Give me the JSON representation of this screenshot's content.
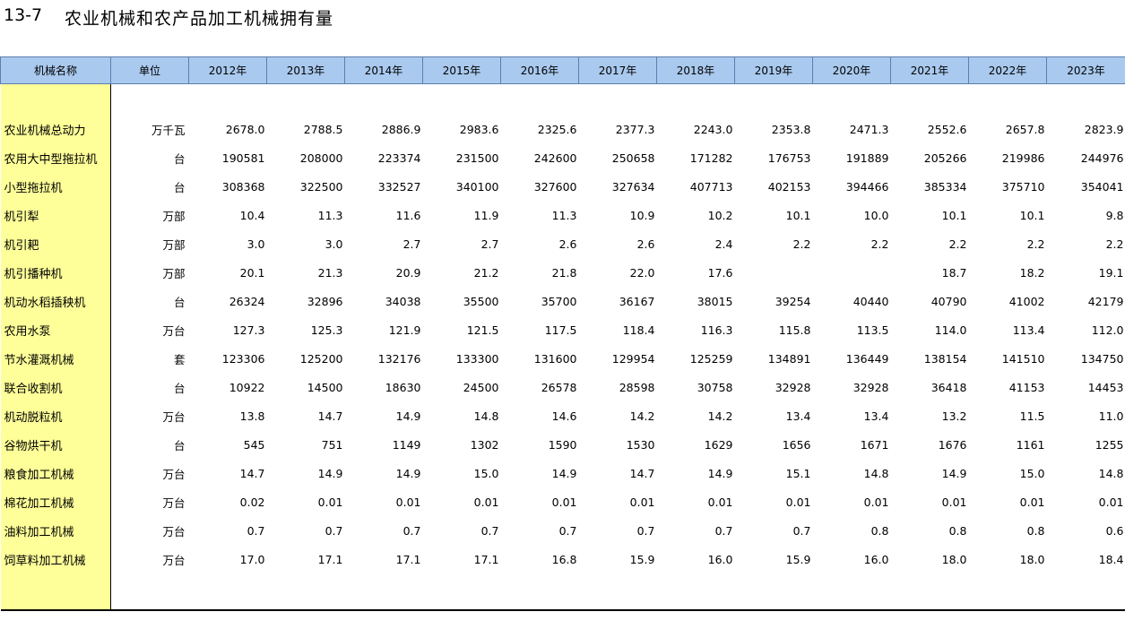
{
  "title": {
    "number": "13-7",
    "text": "农业机械和农产品加工机械拥有量"
  },
  "headers": [
    "机械名称",
    "单位",
    "2012年",
    "2013年",
    "2014年",
    "2015年",
    "2016年",
    "2017年",
    "2018年",
    "2019年",
    "2020年",
    "2021年",
    "2022年",
    "2023年"
  ],
  "rows": [
    {
      "name": "农业机械总动力",
      "unit": "万千瓦",
      "values": [
        "2678.0",
        "2788.5",
        "2886.9",
        "2983.6",
        "2325.6",
        "2377.3",
        "2243.0",
        "2353.8",
        "2471.3",
        "2552.6",
        "2657.8",
        "2823.9"
      ]
    },
    {
      "name": "农用大中型拖拉机",
      "unit": "台",
      "values": [
        "190581",
        "208000",
        "223374",
        "231500",
        "242600",
        "250658",
        "171282",
        "176753",
        "191889",
        "205266",
        "219986",
        "244976"
      ]
    },
    {
      "name": "小型拖拉机",
      "unit": "台",
      "values": [
        "308368",
        "322500",
        "332527",
        "340100",
        "327600",
        "327634",
        "407713",
        "402153",
        "394466",
        "385334",
        "375710",
        "354041"
      ]
    },
    {
      "name": "机引犁",
      "unit": "万部",
      "values": [
        "10.4",
        "11.3",
        "11.6",
        "11.9",
        "11.3",
        "10.9",
        "10.2",
        "10.1",
        "10.0",
        "10.1",
        "10.1",
        "9.8"
      ]
    },
    {
      "name": "机引耙",
      "unit": "万部",
      "values": [
        "3.0",
        "3.0",
        "2.7",
        "2.7",
        "2.6",
        "2.6",
        "2.4",
        "2.2",
        "2.2",
        "2.2",
        "2.2",
        "2.2"
      ]
    },
    {
      "name": "机引播种机",
      "unit": "万部",
      "values": [
        "20.1",
        "21.3",
        "20.9",
        "21.2",
        "21.8",
        "22.0",
        "17.6",
        "",
        "",
        "18.7",
        "18.2",
        "19.1"
      ]
    },
    {
      "name": "机动水稻插秧机",
      "unit": "台",
      "values": [
        "26324",
        "32896",
        "34038",
        "35500",
        "35700",
        "36167",
        "38015",
        "39254",
        "40440",
        "40790",
        "41002",
        "42179"
      ]
    },
    {
      "name": "农用水泵",
      "unit": "万台",
      "values": [
        "127.3",
        "125.3",
        "121.9",
        "121.5",
        "117.5",
        "118.4",
        "116.3",
        "115.8",
        "113.5",
        "114.0",
        "113.4",
        "112.0"
      ]
    },
    {
      "name": "节水灌溉机械",
      "unit": "套",
      "values": [
        "123306",
        "125200",
        "132176",
        "133300",
        "131600",
        "129954",
        "125259",
        "134891",
        "136449",
        "138154",
        "141510",
        "134750"
      ]
    },
    {
      "name": "联合收割机",
      "unit": "台",
      "values": [
        "10922",
        "14500",
        "18630",
        "24500",
        "26578",
        "28598",
        "30758",
        "32928",
        "32928",
        "36418",
        "41153",
        "14453"
      ]
    },
    {
      "name": "机动脱粒机",
      "unit": "万台",
      "values": [
        "13.8",
        "14.7",
        "14.9",
        "14.8",
        "14.6",
        "14.2",
        "14.2",
        "13.4",
        "13.4",
        "13.2",
        "11.5",
        "11.0"
      ]
    },
    {
      "name": "谷物烘干机",
      "unit": "台",
      "values": [
        "545",
        "751",
        "1149",
        "1302",
        "1590",
        "1530",
        "1629",
        "1656",
        "1671",
        "1676",
        "1161",
        "1255"
      ]
    },
    {
      "name": "粮食加工机械",
      "unit": "万台",
      "values": [
        "14.7",
        "14.9",
        "14.9",
        "15.0",
        "14.9",
        "14.7",
        "14.9",
        "15.1",
        "14.8",
        "14.9",
        "15.0",
        "14.8"
      ]
    },
    {
      "name": "棉花加工机械",
      "unit": "万台",
      "values": [
        "0.02",
        "0.01",
        "0.01",
        "0.01",
        "0.01",
        "0.01",
        "0.01",
        "0.01",
        "0.01",
        "0.01",
        "0.01",
        "0.01"
      ]
    },
    {
      "name": "油料加工机械",
      "unit": "万台",
      "values": [
        "0.7",
        "0.7",
        "0.7",
        "0.7",
        "0.7",
        "0.7",
        "0.7",
        "0.7",
        "0.8",
        "0.8",
        "0.8",
        "0.6"
      ]
    },
    {
      "name": "饲草料加工机械",
      "unit": "万台",
      "values": [
        "17.0",
        "17.1",
        "17.1",
        "17.1",
        "16.8",
        "15.9",
        "16.0",
        "15.9",
        "16.0",
        "18.0",
        "18.0",
        "18.4"
      ]
    }
  ],
  "colors": {
    "header_bg": "#a9c9ee",
    "name_col_bg": "#ffff99",
    "header_border": "#5b7fb0"
  }
}
